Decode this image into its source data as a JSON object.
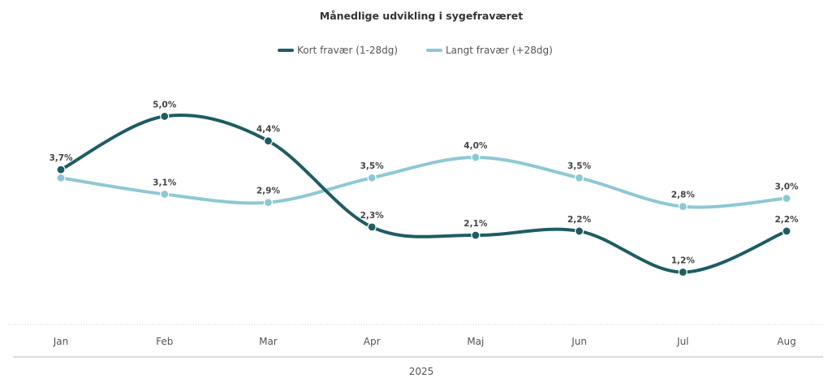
{
  "chart_data": {
    "type": "line",
    "title": "Månedlige udvikling i sygefraværet",
    "categories": [
      "Jan",
      "Feb",
      "Mar",
      "Apr",
      "Maj",
      "Jun",
      "Jul",
      "Aug"
    ],
    "group_label": "2025",
    "legend_position": "top-center",
    "grid": false,
    "series": [
      {
        "name": "Kort fravær (1-28dg)",
        "color": "#1e5c63",
        "values": [
          3.7,
          5.0,
          4.4,
          2.3,
          2.1,
          2.2,
          1.2,
          2.2
        ],
        "labels": [
          "3,7%",
          "5,0%",
          "4,4%",
          "2,3%",
          "2,1%",
          "2,2%",
          "1,2%",
          "2,2%"
        ]
      },
      {
        "name": "Langt fravær (+28dg)",
        "color": "#8ec8d3",
        "values": [
          3.5,
          3.1,
          2.9,
          3.5,
          4.0,
          3.5,
          2.8,
          3.0
        ],
        "labels": [
          "",
          "3,1%",
          "2,9%",
          "3,5%",
          "4,0%",
          "3,5%",
          "2,8%",
          "3,0%"
        ]
      }
    ]
  }
}
